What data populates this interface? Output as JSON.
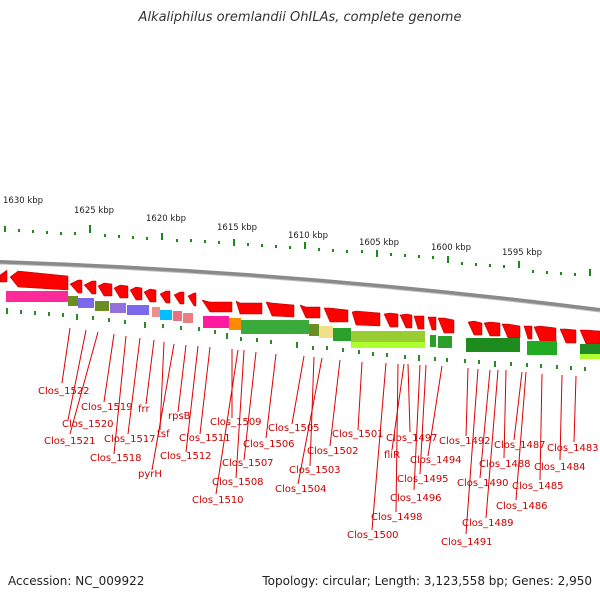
{
  "title": "Alkaliphilus oremlandii OhILAs, complete genome",
  "footer": {
    "accession": "Accession: NC_009922",
    "summary": "Topology: circular; Length: 3,123,558 bp; Genes: 2,950"
  },
  "colors": {
    "gene_arrow": "#ff0000",
    "label": "#cc0000",
    "backbone": "#888888",
    "ticks": "#1a8a1a",
    "orf_marks": "#2a8a2a"
  },
  "scale_labels": [
    "1630 kbp",
    "1625 kbp",
    "1620 kbp",
    "1615 kbp",
    "1610 kbp",
    "1605 kbp",
    "1600 kbp",
    "1595 kbp"
  ],
  "gene_labels": [
    "Clos_1522",
    "Clos_1519",
    "Clos_1520",
    "Clos_1521",
    "frr",
    "Clos_1517",
    "Clos_1518",
    "tsf",
    "pyrH",
    "rpsB",
    "Clos_1511",
    "Clos_1512",
    "Clos_1509",
    "Clos_1510",
    "Clos_1508",
    "Clos_1507",
    "Clos_1506",
    "Clos_1505",
    "Clos_1503",
    "Clos_1504",
    "Clos_1502",
    "Clos_1501",
    "Clos_1500",
    "Clos_1498",
    "fliR",
    "Clos_1497",
    "Clos_1496",
    "Clos_1495",
    "Clos_1494",
    "Clos_1492",
    "Clos_1491",
    "Clos_1490",
    "Clos_1489",
    "Clos_1488",
    "Clos_1487",
    "Clos_1486",
    "Clos_1485",
    "Clos_1484",
    "Clos_1483"
  ]
}
